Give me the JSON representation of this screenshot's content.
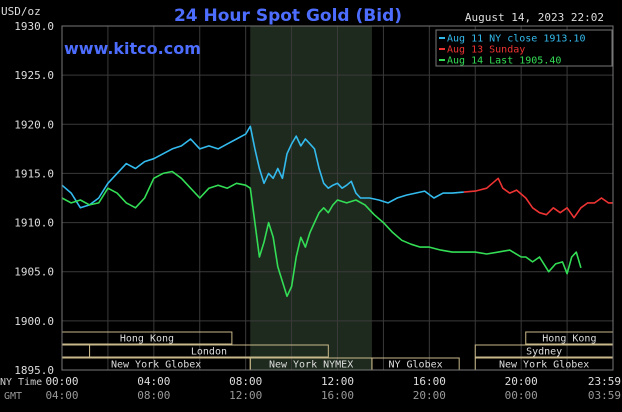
{
  "chart_data": {
    "type": "line",
    "title": "24 Hour Spot Gold (Bid)",
    "ylabel": "USD/oz",
    "datetime": "August 14, 2023 22:02",
    "watermark": "www.kitco.com",
    "ylim": [
      1895.0,
      1930.0
    ],
    "y_ticks": [
      "1930.0",
      "1925.0",
      "1920.0",
      "1915.0",
      "1910.0",
      "1905.0",
      "1900.0",
      "1895.0"
    ],
    "x_ticks_ny": [
      "00:00",
      "04:00",
      "08:00",
      "12:00",
      "16:00",
      "20:00",
      "23:59"
    ],
    "x_ticks_gmt": [
      "04:00",
      "08:00",
      "12:00",
      "16:00",
      "20:00",
      "00:00",
      "03:59"
    ],
    "x_row_labels": {
      "ny": "NY Time",
      "gmt": "GMT"
    },
    "grid": true,
    "legend_position": "top-right",
    "highlight_window_hours": [
      8.2,
      13.5
    ],
    "series": [
      {
        "name": "Aug 11 NY close 1913.10",
        "color": "#33bbee",
        "x": [
          0.0,
          0.4,
          0.8,
          1.2,
          1.6,
          2.0,
          2.4,
          2.8,
          3.2,
          3.6,
          4.0,
          4.4,
          4.8,
          5.2,
          5.6,
          6.0,
          6.4,
          6.8,
          7.2,
          7.6,
          8.0,
          8.2,
          8.4,
          8.6,
          8.8,
          9.0,
          9.2,
          9.4,
          9.6,
          9.8,
          10.0,
          10.2,
          10.4,
          10.6,
          10.8,
          11.0,
          11.2,
          11.4,
          11.6,
          11.8,
          12.0,
          12.2,
          12.4,
          12.6,
          12.8,
          13.0,
          13.4,
          13.8,
          14.2,
          14.6,
          15.0,
          15.4,
          15.8,
          16.2,
          16.6,
          17.0,
          17.5
        ],
        "values": [
          1913.8,
          1913.0,
          1911.5,
          1911.8,
          1912.5,
          1914.0,
          1915.0,
          1916.0,
          1915.5,
          1916.2,
          1916.5,
          1917.0,
          1917.5,
          1917.8,
          1918.5,
          1917.5,
          1917.8,
          1917.5,
          1918.0,
          1918.5,
          1919.0,
          1919.8,
          1917.5,
          1915.5,
          1914.0,
          1915.0,
          1914.5,
          1915.5,
          1914.5,
          1917.0,
          1918.0,
          1918.8,
          1917.8,
          1918.5,
          1918.0,
          1917.5,
          1915.5,
          1914.0,
          1913.5,
          1913.8,
          1914.0,
          1913.5,
          1913.8,
          1914.2,
          1913.0,
          1912.5,
          1912.5,
          1912.3,
          1912.0,
          1912.5,
          1912.8,
          1913.0,
          1913.2,
          1912.5,
          1913.0,
          1913.0,
          1913.1
        ]
      },
      {
        "name": "Aug 13 Sunday",
        "color": "#ee3333",
        "x": [
          17.5,
          18.0,
          18.5,
          19.0,
          19.2,
          19.5,
          19.8,
          20.2,
          20.5,
          20.8,
          21.1,
          21.4,
          21.7,
          22.0,
          22.3,
          22.6,
          22.9,
          23.2,
          23.5,
          23.8,
          23.98
        ],
        "values": [
          1913.1,
          1913.2,
          1913.5,
          1914.5,
          1913.5,
          1913.0,
          1913.3,
          1912.5,
          1911.5,
          1911.0,
          1910.8,
          1911.5,
          1911.0,
          1911.5,
          1910.5,
          1911.5,
          1912.0,
          1912.0,
          1912.5,
          1912.0,
          1912.0
        ]
      },
      {
        "name": "Aug 14 Last 1905.40",
        "color": "#33dd55",
        "x": [
          0.0,
          0.4,
          0.8,
          1.2,
          1.6,
          2.0,
          2.4,
          2.8,
          3.2,
          3.6,
          4.0,
          4.4,
          4.8,
          5.2,
          5.6,
          6.0,
          6.4,
          6.8,
          7.2,
          7.6,
          8.0,
          8.2,
          8.4,
          8.6,
          8.8,
          9.0,
          9.2,
          9.4,
          9.6,
          9.8,
          10.0,
          10.2,
          10.4,
          10.6,
          10.8,
          11.0,
          11.2,
          11.4,
          11.6,
          11.8,
          12.0,
          12.4,
          12.8,
          13.2,
          13.6,
          14.0,
          14.4,
          14.8,
          15.2,
          15.6,
          16.0,
          16.5,
          17.0,
          17.5,
          18.0,
          18.5,
          19.0,
          19.5,
          20.0,
          20.2,
          20.5,
          20.8,
          21.2,
          21.5,
          21.8,
          22.0,
          22.2,
          22.4,
          22.6
        ],
        "values": [
          1912.5,
          1912.0,
          1912.3,
          1911.8,
          1912.0,
          1913.5,
          1913.0,
          1912.0,
          1911.5,
          1912.5,
          1914.5,
          1915.0,
          1915.2,
          1914.5,
          1913.5,
          1912.5,
          1913.5,
          1913.8,
          1913.5,
          1914.0,
          1913.8,
          1913.5,
          1910.0,
          1906.5,
          1908.0,
          1910.0,
          1908.5,
          1905.5,
          1904.0,
          1902.5,
          1903.5,
          1906.5,
          1908.5,
          1907.5,
          1909.0,
          1910.0,
          1911.0,
          1911.5,
          1911.0,
          1911.8,
          1912.3,
          1912.0,
          1912.3,
          1911.8,
          1910.8,
          1910.0,
          1909.0,
          1908.2,
          1907.8,
          1907.5,
          1907.5,
          1907.2,
          1907.0,
          1907.0,
          1907.0,
          1906.8,
          1907.0,
          1907.2,
          1906.5,
          1906.5,
          1906.0,
          1906.5,
          1905.0,
          1905.8,
          1906.0,
          1904.8,
          1906.5,
          1907.0,
          1905.4
        ]
      }
    ],
    "sessions": {
      "rows": [
        [
          {
            "label": "Hong Kong",
            "start": 0.0,
            "end": 7.4
          },
          {
            "label": "Hong Kong",
            "start": 20.2,
            "end": 24.0
          }
        ],
        [
          {
            "label": "",
            "start": 0.0,
            "end": 1.2
          },
          {
            "label": "London",
            "start": 1.2,
            "end": 11.6
          },
          {
            "label": "Sydney",
            "start": 18.0,
            "end": 24.0
          }
        ],
        [
          {
            "label": "New York Globex",
            "start": 0.0,
            "end": 8.2
          },
          {
            "label": "New York NYMEX",
            "start": 8.2,
            "end": 13.5
          },
          {
            "label": "NY Globex",
            "start": 13.5,
            "end": 17.3
          },
          {
            "label": "New York Globex",
            "start": 18.0,
            "end": 24.0
          }
        ]
      ]
    }
  }
}
